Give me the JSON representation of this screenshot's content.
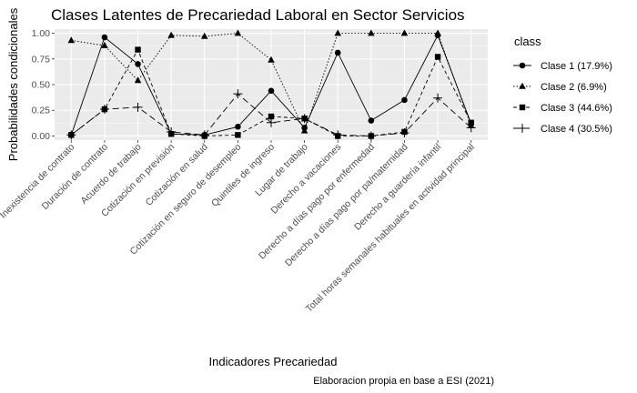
{
  "chart_data": {
    "type": "line",
    "title": "Clases Latentes de Precariedad Laboral en Sector Servicios",
    "xlabel": "Indicadores Precariedad",
    "ylabel": "Probabilidades condicionales",
    "caption": "Elaboracion propia en base a ESI (2021)",
    "legend_title": "class",
    "legend_position": "right",
    "grid": true,
    "ylim": [
      -0.04,
      1.04
    ],
    "yticks": [
      0.0,
      0.25,
      0.5,
      0.75,
      1.0
    ],
    "ytick_labels": [
      "0.00",
      "0.25",
      "0.50",
      "0.75",
      "1.00"
    ],
    "categories": [
      "Inexistencia de contrato",
      "Duración de contrato",
      "Acuerdo de trabajo",
      "Cotización en previsión",
      "Cotización en salud",
      "Cotización en seguro de desempleo",
      "Quintiles de ingreso",
      "Lugar de trabajo",
      "Derecho a vacaciones",
      "Derecho a días pago por enfermedad",
      "Derecho a días pago por pa/maternidad",
      "Derecho a guardería infantil",
      "Total horas semanales habituales en actividad principal"
    ],
    "series": [
      {
        "name": "Clase 1 (17.9%)",
        "marker": "circle",
        "dash": "solid",
        "values": [
          0.01,
          0.96,
          0.7,
          0.02,
          0.01,
          0.09,
          0.44,
          0.08,
          0.81,
          0.15,
          0.35,
          0.98,
          0.12
        ]
      },
      {
        "name": "Clase 2 (6.9%)",
        "marker": "triangle",
        "dash": "dotted",
        "values": [
          0.93,
          0.88,
          0.54,
          0.98,
          0.97,
          1.0,
          0.74,
          0.05,
          1.0,
          1.0,
          1.0,
          1.0,
          0.1
        ]
      },
      {
        "name": "Clase 3 (44.6%)",
        "marker": "square",
        "dash": "dashed",
        "values": [
          0.01,
          0.26,
          0.84,
          0.02,
          0.0,
          0.01,
          0.19,
          0.17,
          0.0,
          0.0,
          0.04,
          0.77,
          0.13
        ]
      },
      {
        "name": "Clase 4 (30.5%)",
        "marker": "plus",
        "dash": "longdash",
        "values": [
          0.01,
          0.26,
          0.28,
          0.04,
          0.01,
          0.41,
          0.13,
          0.17,
          0.01,
          0.0,
          0.03,
          0.37,
          0.08
        ]
      }
    ]
  }
}
